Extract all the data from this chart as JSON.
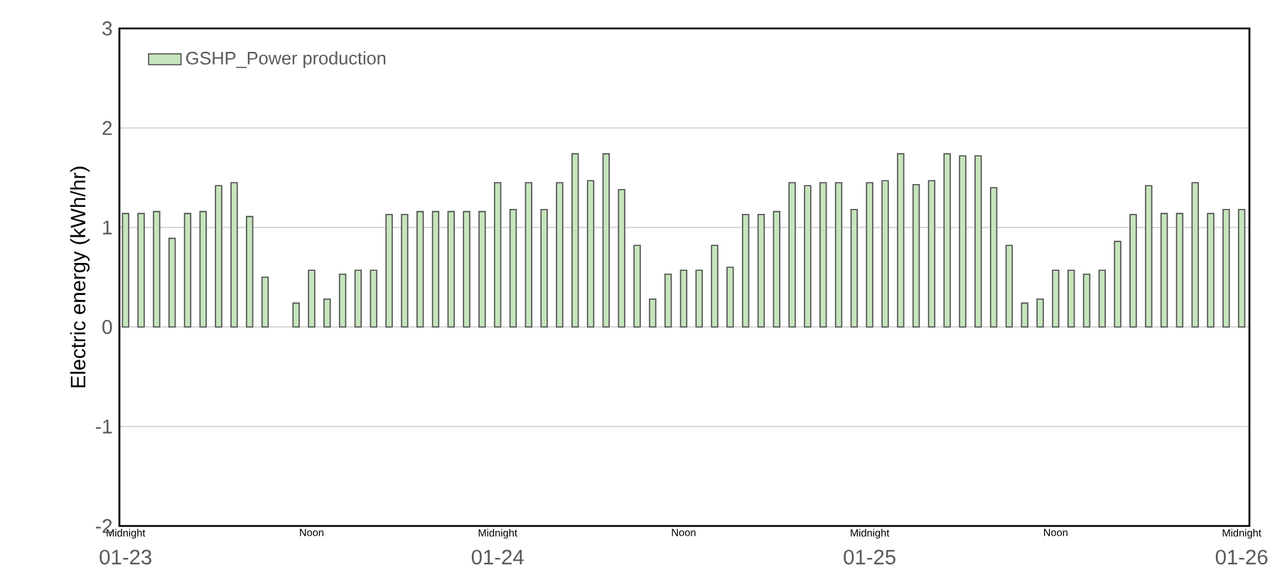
{
  "chart_data": {
    "type": "bar",
    "ylabel": "Electric energy (kWh/hr)",
    "categories": [
      "Midnight",
      null,
      null,
      null,
      null,
      null,
      null,
      null,
      null,
      null,
      null,
      null,
      "Noon",
      null,
      null,
      null,
      null,
      null,
      null,
      null,
      null,
      null,
      null,
      null,
      "Midnight",
      null,
      null,
      null,
      null,
      null,
      null,
      null,
      null,
      null,
      null,
      null,
      "Noon",
      null,
      null,
      null,
      null,
      null,
      null,
      null,
      null,
      null,
      null,
      null,
      "Midnight",
      null,
      null,
      null,
      null,
      null,
      null,
      null,
      null,
      null,
      null,
      null,
      "Noon",
      null,
      null,
      null,
      null,
      null,
      null,
      null,
      null,
      null,
      null,
      null,
      "Midnight"
    ],
    "series": [
      {
        "name": "GSHP_Power production",
        "color": "#c5e5bd",
        "values": [
          1.14,
          1.14,
          1.16,
          0.89,
          1.14,
          1.16,
          1.42,
          1.45,
          1.11,
          0.5,
          null,
          0.24,
          0.57,
          0.28,
          0.53,
          0.57,
          0.57,
          1.13,
          1.13,
          1.16,
          1.16,
          1.16,
          1.16,
          1.16,
          1.45,
          1.18,
          1.45,
          1.18,
          1.45,
          1.74,
          1.47,
          1.74,
          1.38,
          0.82,
          0.28,
          0.53,
          0.57,
          0.57,
          0.82,
          0.6,
          1.13,
          1.13,
          1.16,
          1.45,
          1.42,
          1.45,
          1.45,
          1.18,
          1.45,
          1.47,
          1.74,
          1.43,
          1.47,
          1.74,
          1.72,
          1.72,
          1.4,
          0.82,
          0.24,
          0.28,
          0.57,
          0.57,
          0.53,
          0.57,
          0.86,
          1.13,
          1.42,
          1.14,
          1.14,
          1.45,
          1.14,
          1.18,
          1.18
        ]
      }
    ],
    "ylim": [
      -2,
      3
    ],
    "yticks": [
      -2,
      -1,
      0,
      1,
      2,
      3
    ],
    "annotations": [
      "01-23",
      "01-24",
      "01-25",
      "01-26"
    ],
    "grid": "y",
    "legend": "top left"
  }
}
